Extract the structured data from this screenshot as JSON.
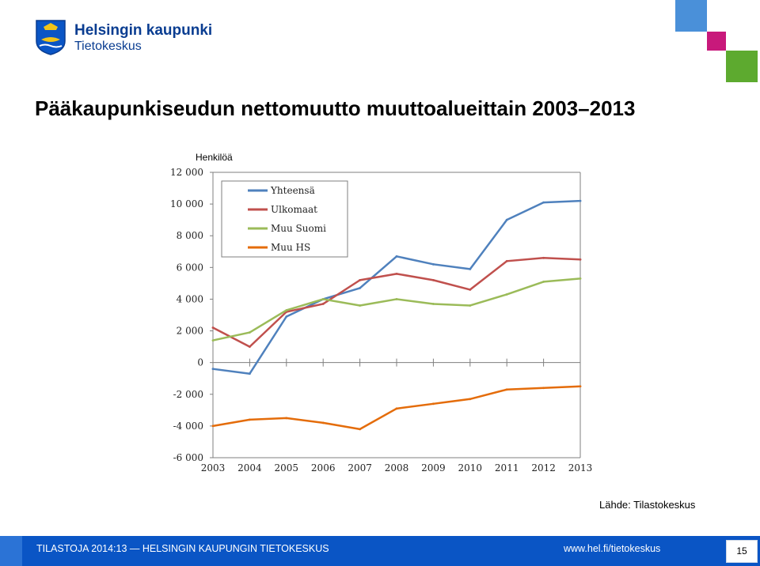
{
  "header": {
    "logo_line1": "Helsingin kaupunki",
    "logo_line2": "Tietokeskus"
  },
  "title": "Pääkaupunkiseudun nettomuutto muuttoalueittain 2003–2013",
  "source": "Lähde: Tilastokeskus",
  "footer": {
    "left_text": "TILASTOJA 2014:13 — HELSINGIN KAUPUNGIN TIETOKESKUS",
    "url": "www.hel.fi/tietokeskus",
    "page_number": "15"
  },
  "colors": {
    "brand_blue": "#0a55c5",
    "deco_blue": "#4a90d9",
    "deco_magenta": "#c8197b",
    "deco_green": "#5daa2f"
  },
  "chart_data": {
    "type": "line",
    "title": "",
    "ylabel": "Henkilöä",
    "xlabel": "",
    "x": [
      "2003",
      "2004",
      "2005",
      "2006",
      "2007",
      "2008",
      "2009",
      "2010",
      "2011",
      "2012",
      "2013"
    ],
    "ylim": [
      -6000,
      12000
    ],
    "yticks": [
      12000,
      10000,
      8000,
      6000,
      4000,
      2000,
      0,
      -2000,
      -4000,
      -6000
    ],
    "ytick_labels": [
      "12 000",
      "10 000",
      "8 000",
      "6 000",
      "4 000",
      "2 000",
      "0",
      "-2 000",
      "-4 000",
      "-6 000"
    ],
    "grid": false,
    "legend_position": "top-left",
    "series": [
      {
        "name": "Yhteensä",
        "color": "#4f81bd",
        "values": [
          -400,
          -700,
          2900,
          4000,
          4700,
          6700,
          6200,
          5900,
          9000,
          10100,
          10200
        ]
      },
      {
        "name": "Ulkomaat",
        "color": "#c0504d",
        "values": [
          2200,
          1000,
          3200,
          3700,
          5200,
          5600,
          5200,
          4600,
          6400,
          6600,
          6500
        ]
      },
      {
        "name": "Muu Suomi",
        "color": "#9bbb59",
        "values": [
          1400,
          1900,
          3300,
          4000,
          3600,
          4000,
          3700,
          3600,
          4300,
          5100,
          5300
        ]
      },
      {
        "name": "Muu HS",
        "color": "#e46c0a",
        "values": [
          -4000,
          -3600,
          -3500,
          -3800,
          -4200,
          -2900,
          -2600,
          -2300,
          -1700,
          -1600,
          -1500
        ]
      }
    ]
  }
}
